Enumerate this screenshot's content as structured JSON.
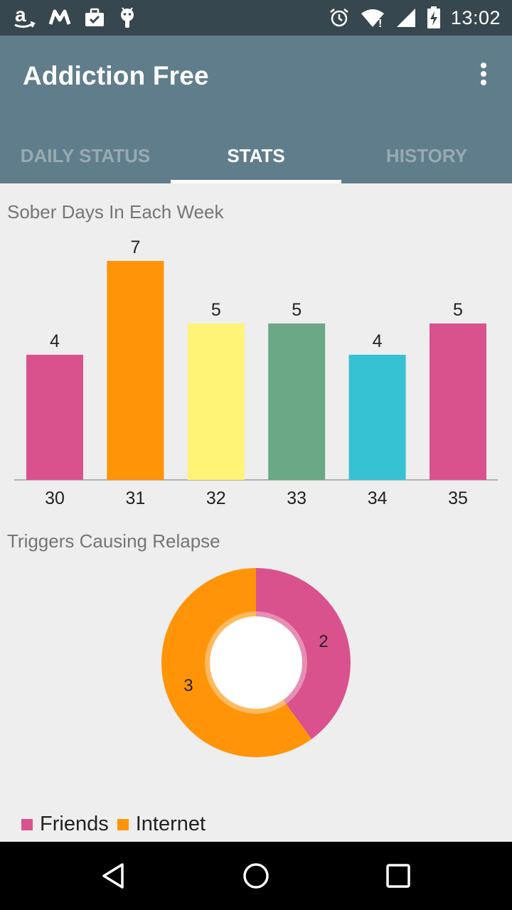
{
  "status_bar": {
    "time": "13:02",
    "left_icons": [
      "amazon-icon",
      "m-app-icon",
      "briefcase-check-icon",
      "android-icon"
    ],
    "right_icons": [
      "alarm-icon",
      "wifi-icon",
      "signal-icon",
      "battery-charging-icon"
    ]
  },
  "app_bar": {
    "title": "Addiction Free",
    "menu_icon": "overflow-menu-icon"
  },
  "tabs": [
    {
      "label": "DAILY STATUS",
      "active": false
    },
    {
      "label": "STATS",
      "active": true
    },
    {
      "label": "HISTORY",
      "active": false
    }
  ],
  "sections": {
    "sober_title": "Sober Days In Each Week",
    "triggers_title": "Triggers Causing Relapse"
  },
  "chart_data": [
    {
      "type": "bar",
      "title": "Sober Days In Each Week",
      "categories": [
        "30",
        "31",
        "32",
        "33",
        "34",
        "35"
      ],
      "values": [
        4,
        7,
        5,
        5,
        4,
        5
      ],
      "colors": [
        "#d9528d",
        "#ff9408",
        "#fff475",
        "#6aa886",
        "#37c2d3",
        "#d9528d"
      ],
      "ylim": [
        0,
        7
      ],
      "grid": false,
      "data_labels": true
    },
    {
      "type": "pie",
      "title": "Triggers Causing Relapse",
      "donut": true,
      "labels": [
        "Friends",
        "Internet"
      ],
      "values": [
        2,
        3
      ],
      "colors": [
        "#d9528d",
        "#ff9408"
      ],
      "legend_position": "bottom-left"
    }
  ],
  "nav_bar": {
    "icons": [
      "back-icon",
      "home-icon",
      "recents-icon"
    ]
  }
}
